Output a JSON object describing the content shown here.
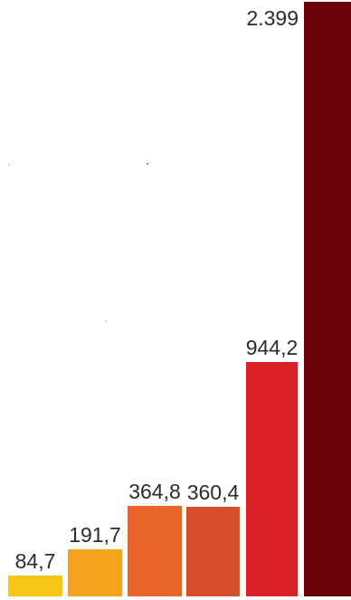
{
  "chart_data": {
    "type": "bar",
    "title": "",
    "xlabel": "",
    "ylabel": "",
    "categories": [
      "",
      "",
      "",
      "",
      "",
      ""
    ],
    "values": [
      84.7,
      191.7,
      364.8,
      360.4,
      944.2,
      2399
    ],
    "value_labels": [
      "84,7",
      "191,7",
      "364,8",
      "360,4",
      "944,2",
      "2.399"
    ],
    "colors": [
      "#F7C619",
      "#F5A31F",
      "#E8652A",
      "#D44F2A",
      "#D91F26",
      "#6B0006"
    ],
    "ylim": [
      0,
      2399
    ],
    "grid": false,
    "legend": "none"
  }
}
